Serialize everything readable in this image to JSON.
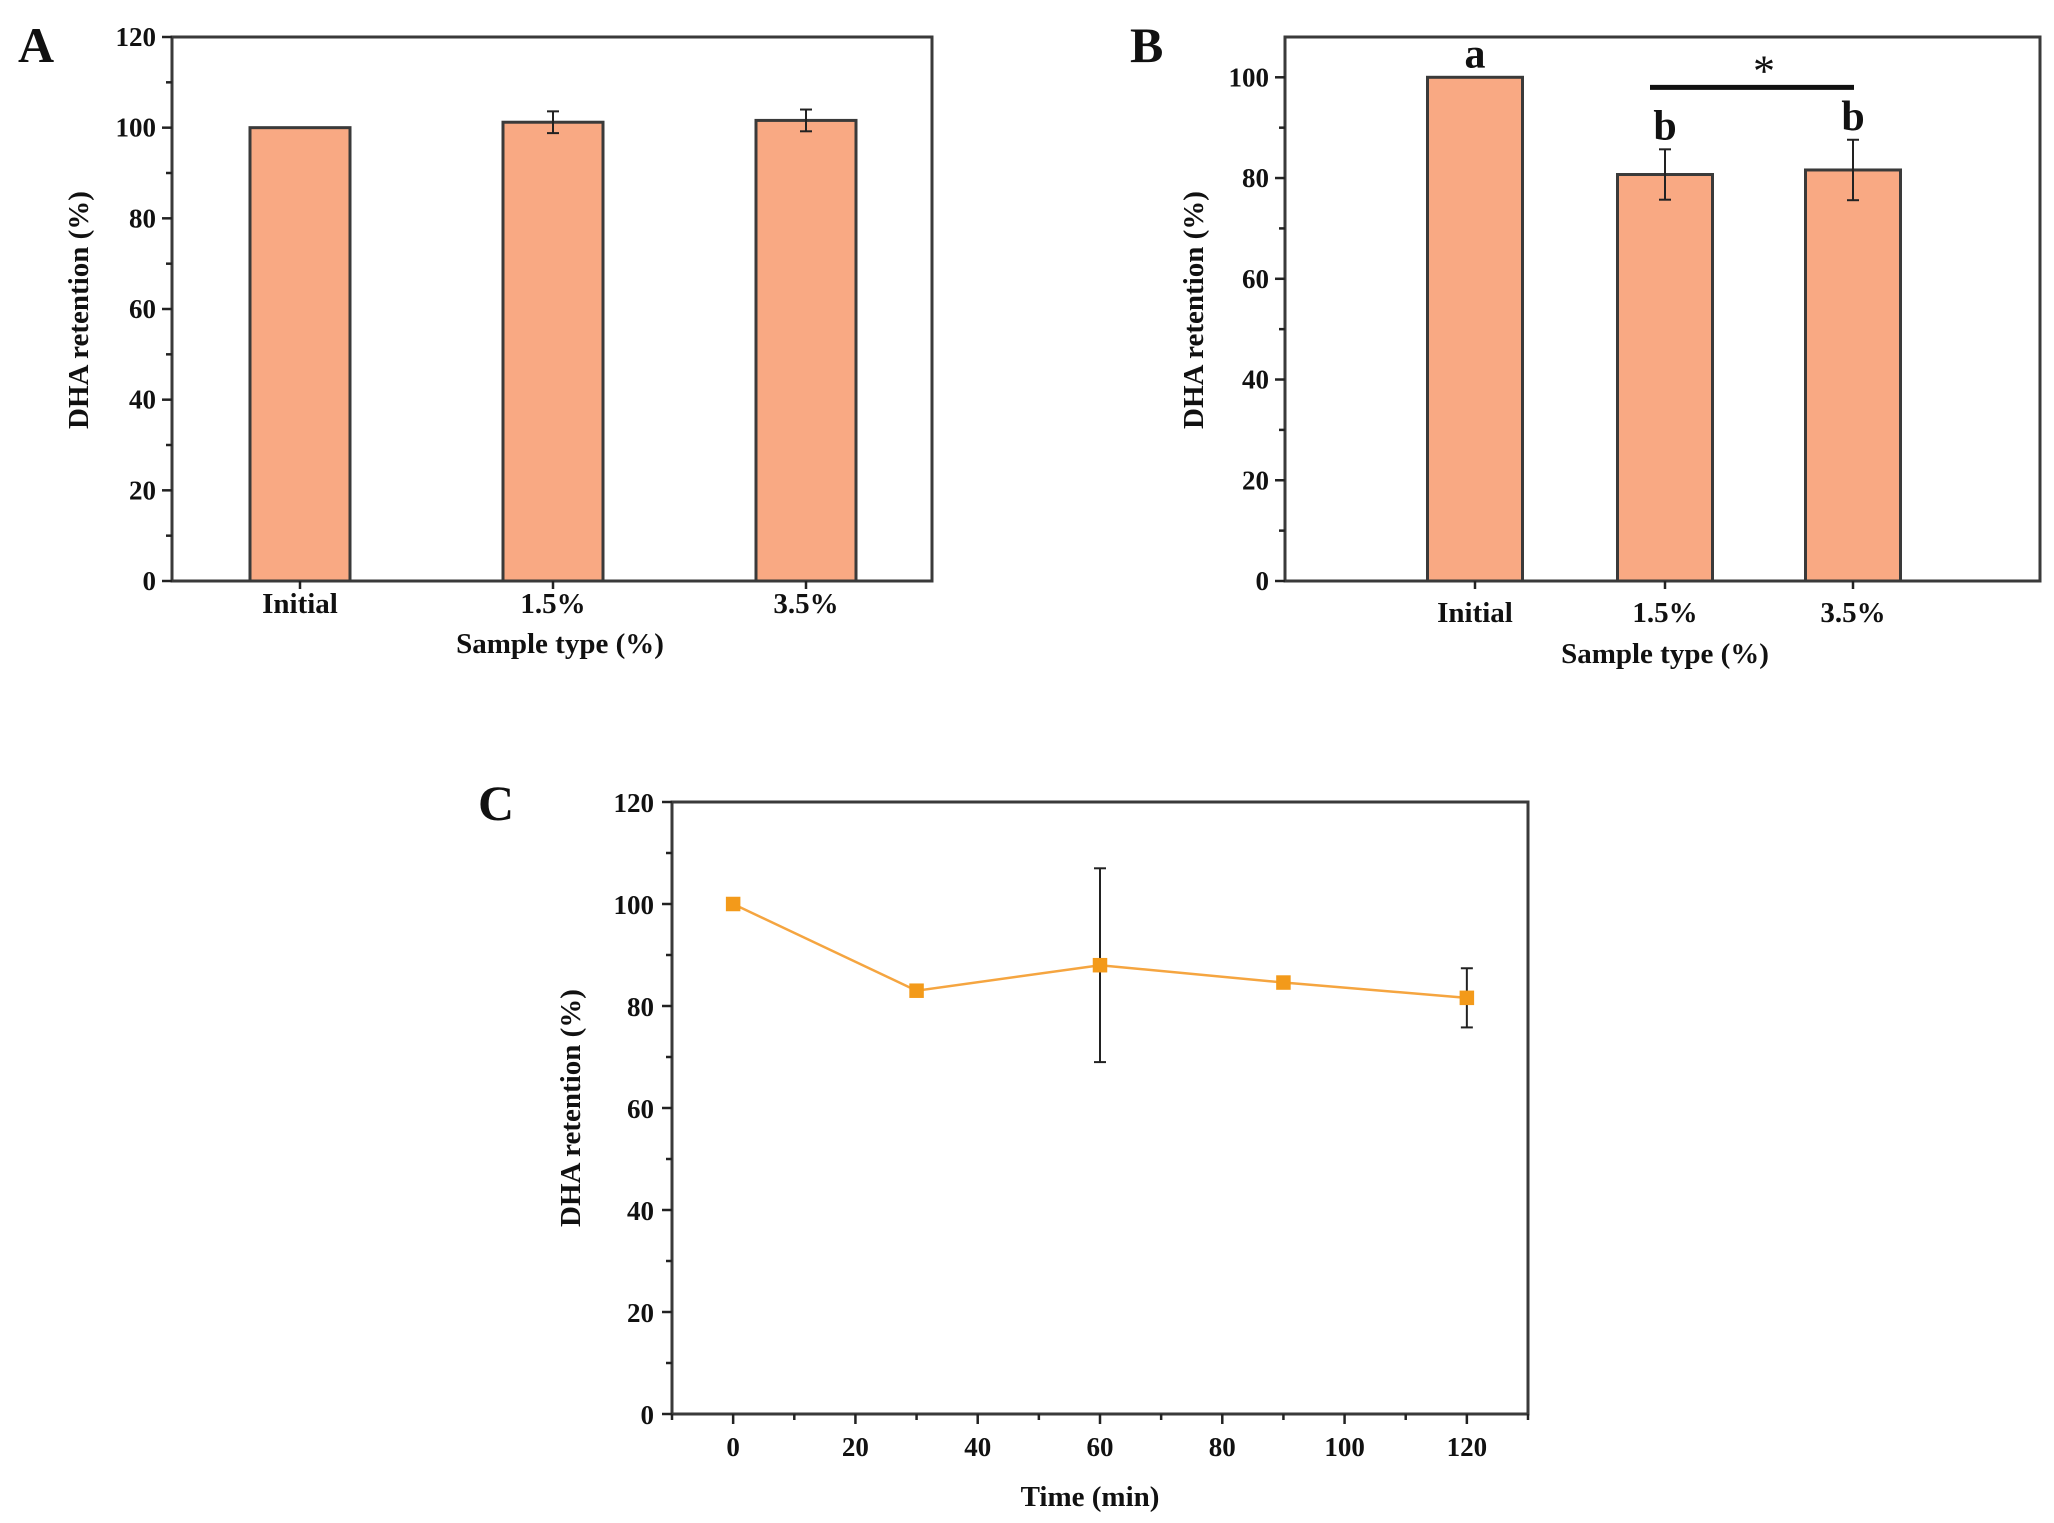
{
  "chart_data": [
    {
      "panel": "A",
      "type": "bar",
      "title": "",
      "xlabel": "Sample type (%)",
      "ylabel": "DHA retention (%)",
      "categories": [
        "Initial",
        "1.5%",
        "3.5%"
      ],
      "values": [
        100,
        101.2,
        101.6
      ],
      "errors": [
        0,
        2.4,
        2.4
      ],
      "ylim": [
        0,
        120
      ],
      "yticks": [
        0,
        20,
        40,
        60,
        80,
        100,
        120
      ],
      "bar_color": "#f9a983",
      "significance": []
    },
    {
      "panel": "B",
      "type": "bar",
      "title": "",
      "xlabel": "Sample type (%)",
      "ylabel": "DHA retention (%)",
      "categories": [
        "Initial",
        "1.5%",
        "3.5%"
      ],
      "values": [
        100,
        80.7,
        81.6
      ],
      "errors": [
        0,
        5,
        6
      ],
      "ylim": [
        0,
        108
      ],
      "yticks": [
        0,
        20,
        40,
        60,
        80,
        100
      ],
      "bar_color": "#f9a983",
      "significance": [
        "a",
        "b",
        "b"
      ],
      "bracket": {
        "from": 1,
        "to": 2,
        "label": "*"
      }
    },
    {
      "panel": "C",
      "type": "line",
      "title": "",
      "xlabel": "Time (min)",
      "ylabel": "DHA retention (%)",
      "x": [
        0,
        30,
        60,
        90,
        120
      ],
      "series": [
        {
          "name": "DHA retention",
          "values": [
            100,
            83,
            88,
            84.6,
            81.6
          ],
          "errors": [
            0,
            0.8,
            19,
            1,
            5.8
          ]
        }
      ],
      "xlim": [
        -10,
        130
      ],
      "xticks": [
        0,
        20,
        40,
        60,
        80,
        100,
        120
      ],
      "ylim": [
        0,
        120
      ],
      "yticks": [
        0,
        20,
        40,
        60,
        80,
        100,
        120
      ],
      "line_color": "#f5a540",
      "marker_color": "#f39a1a"
    }
  ]
}
